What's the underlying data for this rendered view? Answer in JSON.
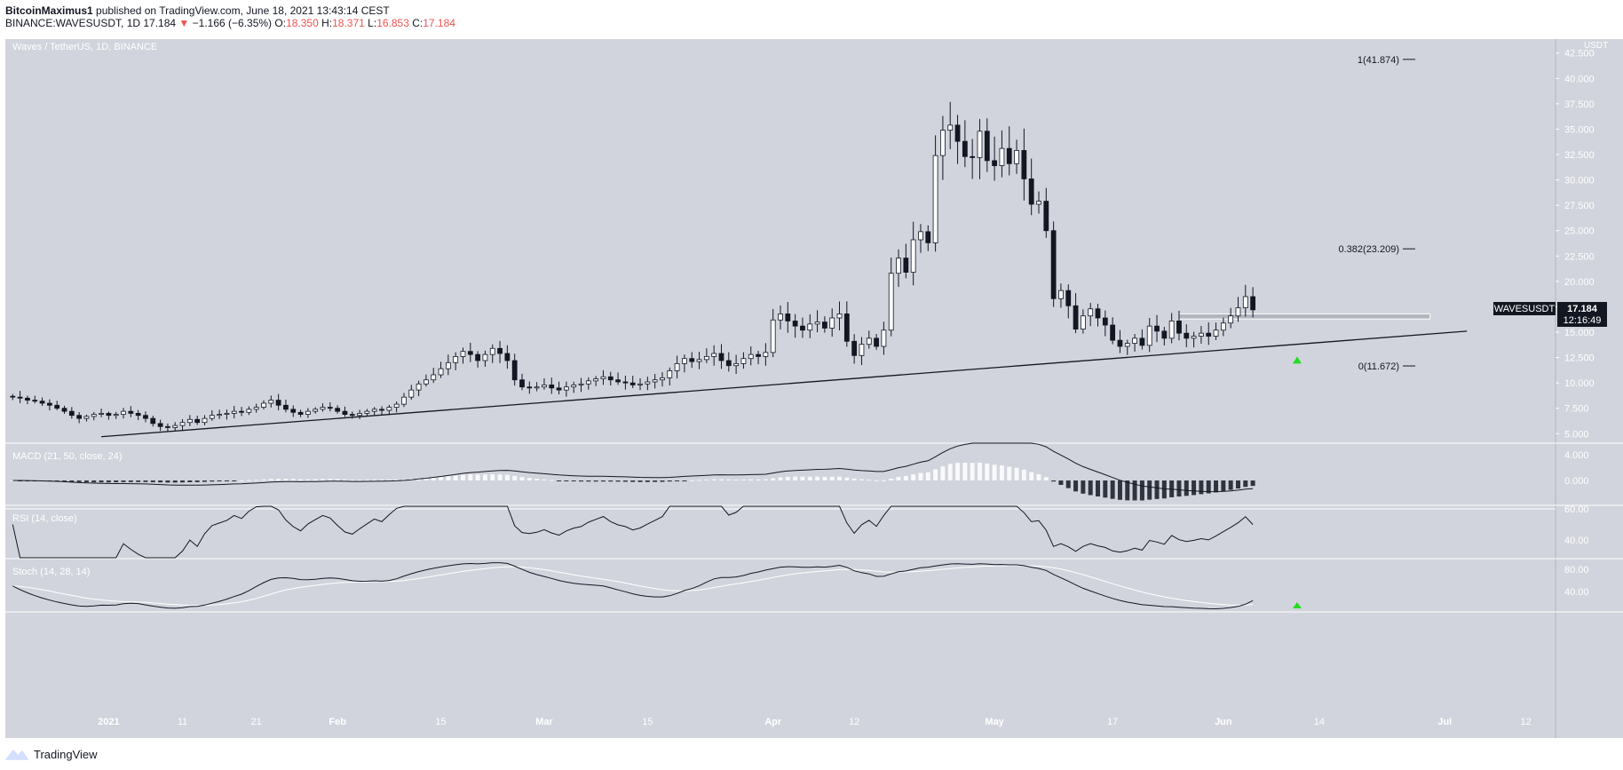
{
  "header": {
    "line1_user": "BitcoinMaximus1",
    "line1_rest": " published on TradingView.com, June 18, 2021 13:43:14 CEST",
    "symbol": "BINANCE:WAVESUSDT, 1D",
    "last": "17.184",
    "change_arrow": "▼",
    "change": "−1.166 (−6.35%)",
    "o_label": "O:",
    "o": "18.350",
    "h_label": "H:",
    "h": "18.371",
    "l_label": "L:",
    "l": "16.853",
    "c_label": "C:",
    "c": "17.184"
  },
  "pane_title": "Waves / TetherUS, 1D, BINANCE",
  "axis_unit": "USDT",
  "price_tag": {
    "symbol": "WAVESUSDT",
    "price": "17.184",
    "countdown": "12:16:49"
  },
  "footer_brand": "TradingView",
  "colors": {
    "bg": "#d1d4dc",
    "pane_bg": "#d1d4dc",
    "up": "#ffffff",
    "down": "#131722",
    "green": "#22dd22"
  },
  "indicators": {
    "macd": {
      "label": "MACD (21, 50, close, 24)",
      "ticks": [
        "4.000",
        "0.000"
      ]
    },
    "rsi": {
      "label": "RSI (14, close)",
      "ticks": [
        "60.00",
        "40.00"
      ]
    },
    "stoch": {
      "label": "Stoch (14, 28, 14)",
      "ticks": [
        "80.00",
        "40.00"
      ]
    }
  },
  "chart_data": {
    "type": "candlestick",
    "title": "Waves / TetherUS, 1D, BINANCE",
    "ylabel": "USDT",
    "ylim": [
      4.5,
      43
    ],
    "y_ticks": [
      "5.000",
      "7.500",
      "10.000",
      "12.500",
      "15.000",
      "17.500",
      "20.000",
      "22.500",
      "25.000",
      "27.500",
      "30.000",
      "32.500",
      "35.000",
      "37.500",
      "40.000",
      "42.500"
    ],
    "x_ticks": [
      "2021",
      "11",
      "21",
      "Feb",
      "15",
      "Mar",
      "15",
      "Apr",
      "12",
      "May",
      "17",
      "Jun",
      "14",
      "Jul",
      "12"
    ],
    "x_range": [
      "2020-12-18",
      "2021-07-16"
    ],
    "fib_levels": [
      {
        "label": "1(41.874)",
        "value": 41.874
      },
      {
        "label": "0.382(23.209)",
        "value": 23.209
      },
      {
        "label": "0(11.672)",
        "value": 11.672
      }
    ],
    "trendline": {
      "from": [
        "2020-12-31",
        4.7
      ],
      "to": [
        "2021-07-04",
        15.1
      ]
    },
    "horizontal_zone": {
      "from": "2021-05-26",
      "to": "2021-06-29",
      "low": 16.3,
      "high": 16.8
    },
    "candles_close": [
      8.6,
      8.5,
      8.3,
      8.2,
      8.0,
      7.8,
      7.5,
      7.2,
      6.8,
      6.5,
      6.7,
      6.9,
      7.0,
      6.8,
      6.9,
      7.2,
      7.0,
      6.8,
      6.5,
      6.0,
      5.7,
      5.6,
      5.8,
      6.1,
      6.4,
      6.1,
      6.5,
      6.8,
      6.9,
      7.0,
      7.2,
      7.1,
      7.4,
      7.6,
      8.0,
      8.3,
      7.8,
      7.4,
      7.1,
      6.9,
      7.2,
      7.4,
      7.6,
      7.5,
      7.2,
      6.9,
      6.8,
      7.0,
      7.2,
      7.4,
      7.3,
      7.6,
      7.9,
      8.6,
      9.3,
      9.9,
      10.3,
      10.8,
      11.4,
      12.0,
      12.6,
      13.1,
      12.8,
      12.2,
      12.8,
      13.4,
      12.9,
      12.2,
      10.3,
      9.6,
      9.5,
      9.6,
      9.8,
      9.5,
      9.3,
      9.6,
      9.8,
      9.9,
      10.2,
      10.4,
      10.6,
      10.3,
      10.1,
      10.0,
      9.8,
      9.9,
      10.1,
      10.3,
      10.5,
      11.2,
      11.9,
      12.4,
      12.1,
      12.3,
      12.6,
      12.9,
      12.2,
      11.7,
      11.9,
      12.4,
      12.8,
      12.6,
      13.0,
      16.2,
      16.8,
      16.1,
      15.6,
      15.2,
      15.8,
      16.0,
      15.4,
      16.4,
      16.8,
      14.1,
      12.7,
      13.8,
      14.4,
      13.6,
      15.2,
      20.8,
      22.3,
      20.9,
      24.1,
      24.9,
      23.8,
      32.4,
      34.9,
      35.4,
      33.8,
      32.3,
      32.2,
      34.8,
      31.9,
      31.4,
      33.1,
      31.6,
      32.9,
      30.1,
      27.6,
      27.9,
      25.0,
      18.3,
      19.1,
      17.6,
      15.3,
      16.6,
      17.3,
      16.4,
      15.7,
      14.2,
      13.6,
      13.9,
      14.4,
      13.7,
      15.6,
      15.1,
      14.4,
      16.1,
      14.9,
      14.4,
      14.6,
      14.9,
      14.6,
      15.2,
      15.9,
      16.6,
      17.4,
      18.5,
      17.2
    ]
  }
}
